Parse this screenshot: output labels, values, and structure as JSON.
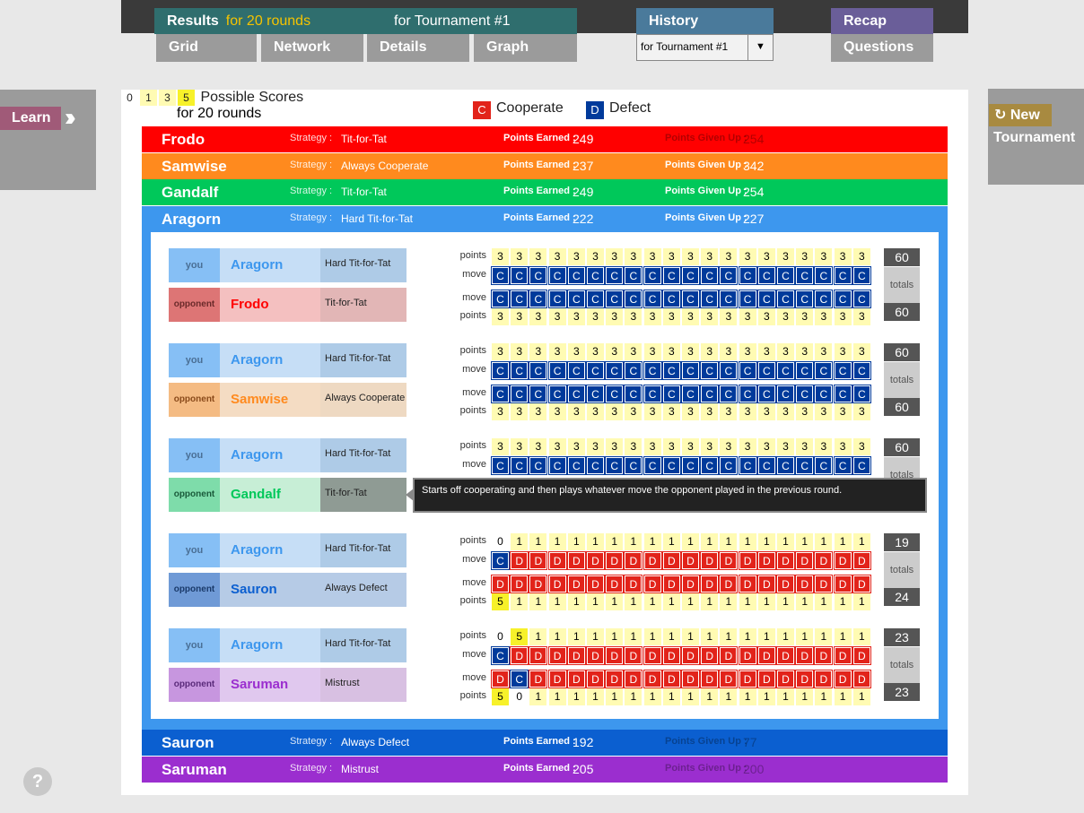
{
  "nav": {
    "results_label": "Results",
    "results_sub": "for 20 rounds",
    "results_tournament": "for Tournament #1",
    "grid": "Grid",
    "network": "Network",
    "details": "Details",
    "graph": "Graph",
    "history": "History",
    "history_selected": "for Tournament #1",
    "recap": "Recap",
    "questions": "Questions"
  },
  "side": {
    "learn": "Learn",
    "new_line1": "New",
    "new_line2": "Tournament",
    "help": "?"
  },
  "header": {
    "rounds": "for 20 rounds",
    "cooperate_box": "C",
    "cooperate": "Cooperate",
    "defect_box": "D",
    "defect": "Defect",
    "scores": [
      "0",
      "1",
      "3",
      "5"
    ],
    "possible_scores": "Possible Scores"
  },
  "labels": {
    "strategy": "Strategy :",
    "earned": "Points Earned :",
    "given": "Points Given Up :",
    "points": "points",
    "move": "move",
    "totals": "totals",
    "you": "you",
    "opponent": "opponent"
  },
  "players": [
    {
      "name": "Frodo",
      "strategy": "Tit-for-Tat",
      "earned": "249",
      "given": "254",
      "color": "#ff0000"
    },
    {
      "name": "Samwise",
      "strategy": "Always Cooperate",
      "earned": "237",
      "given": "342",
      "color": "#ff8a1e"
    },
    {
      "name": "Gandalf",
      "strategy": "Tit-for-Tat",
      "earned": "249",
      "given": "254",
      "color": "#00c85a"
    },
    {
      "name": "Aragorn",
      "strategy": "Hard Tit-for-Tat",
      "earned": "222",
      "given": "227",
      "color": "#3d97ee"
    },
    {
      "name": "Sauron",
      "strategy": "Always Defect",
      "earned": "192",
      "given": "77",
      "color": "#0b5fd0"
    },
    {
      "name": "Saruman",
      "strategy": "Mistrust",
      "earned": "205",
      "given": "200",
      "color": "#9b2ecf"
    }
  ],
  "matches": [
    {
      "you": {
        "name": "Aragorn",
        "strategy": "Hard Tit-for-Tat"
      },
      "opp": {
        "name": "Frodo",
        "strategy": "Tit-for-Tat",
        "color": "#ff0000",
        "tint": "#f4c0c0",
        "dark": "#dd7575",
        "stint": "#e2b6b6"
      },
      "you_points": "33333333333333333333",
      "you_moves": "CCCCCCCCCCCCCCCCCCCC",
      "opp_moves": "CCCCCCCCCCCCCCCCCCCC",
      "opp_points": "33333333333333333333",
      "you_total": "60",
      "opp_total": "60"
    },
    {
      "you": {
        "name": "Aragorn",
        "strategy": "Hard Tit-for-Tat"
      },
      "opp": {
        "name": "Samwise",
        "strategy": "Always Cooperate",
        "color": "#ff8a1e",
        "tint": "#f4dcc3",
        "dark": "#f4bb83",
        "stint": "#eed9c2"
      },
      "you_points": "33333333333333333333",
      "you_moves": "CCCCCCCCCCCCCCCCCCCC",
      "opp_moves": "CCCCCCCCCCCCCCCCCCCC",
      "opp_points": "33333333333333333333",
      "you_total": "60",
      "opp_total": "60"
    },
    {
      "you": {
        "name": "Aragorn",
        "strategy": "Hard Tit-for-Tat"
      },
      "opp": {
        "name": "Gandalf",
        "strategy": "Tit-for-Tat",
        "color": "#00c85a",
        "tint": "#c7eed6",
        "dark": "#7edcaa",
        "stint": "#8f9b94"
      },
      "you_points": "33333333333333333333",
      "you_moves": "CCCCCCCCCCCCCCCCCCCC",
      "opp_moves": "",
      "opp_points": "",
      "you_total": "60",
      "opp_total": ""
    },
    {
      "you": {
        "name": "Aragorn",
        "strategy": "Hard Tit-for-Tat"
      },
      "opp": {
        "name": "Sauron",
        "strategy": "Always Defect",
        "color": "#0b5fd0",
        "tint": "#b6cbe6",
        "dark": "#6f9ad6",
        "stint": "#b6cbe6"
      },
      "you_points": "01111111111111111111",
      "you_moves": "CDDDDDDDDDDDDDDDDDDD",
      "opp_moves": "DDDDDDDDDDDDDDDDDDDD",
      "opp_points": "51111111111111111111",
      "you_total": "19",
      "opp_total": "24"
    },
    {
      "you": {
        "name": "Aragorn",
        "strategy": "Hard Tit-for-Tat"
      },
      "opp": {
        "name": "Saruman",
        "strategy": "Mistrust",
        "color": "#9b2ecf",
        "tint": "#e0c8ee",
        "dark": "#c796df",
        "stint": "#d8c0e2"
      },
      "you_points": "05111111111111111111",
      "you_moves": "CDDDDDDDDDDDDDDDDDDD",
      "opp_moves": "DCDDDDDDDDDDDDDDDDDD",
      "opp_points": "50111111111111111111",
      "you_total": "23",
      "opp_total": "23"
    }
  ],
  "tooltip": "Starts off cooperating and then plays whatever move the opponent played in the previous round.",
  "colors": {
    "cooperate": "#003a9b",
    "defect": "#e2231a",
    "aragorn_text": "#3d97ee",
    "you_role": "#86bff5",
    "you_name": "#c6def6",
    "you_strat": "#aecbe7"
  }
}
